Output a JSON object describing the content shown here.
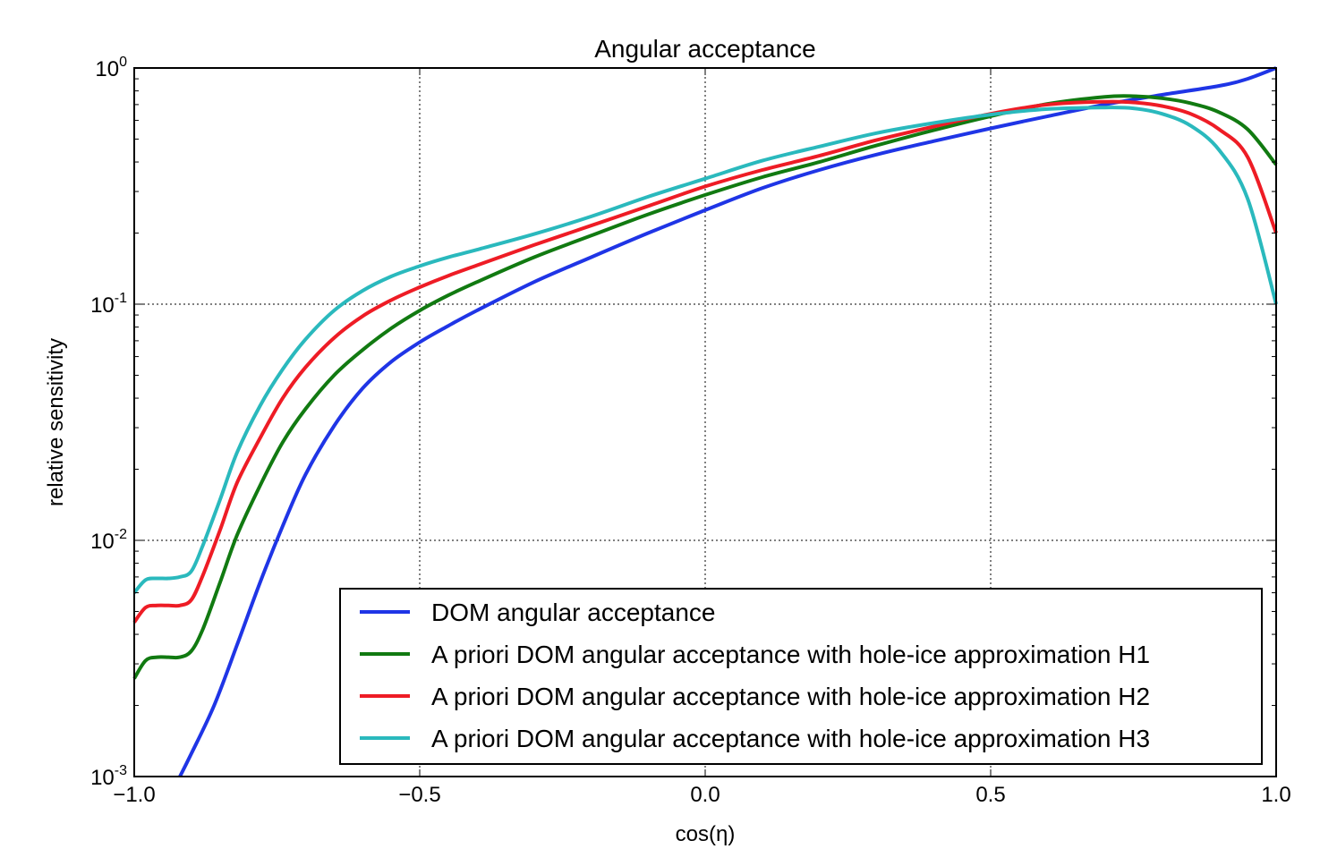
{
  "chart_data": {
    "type": "line",
    "title": "Angular acceptance",
    "xlabel": "cos(η)",
    "ylabel": "relative sensitivity",
    "xlim": [
      -1.0,
      1.0
    ],
    "ylim": [
      0.001,
      1.0
    ],
    "yscale": "log",
    "grid": true,
    "legend_position": "lower-right",
    "x_ticks": [
      {
        "value": -1.0,
        "label": "−1.0"
      },
      {
        "value": -0.5,
        "label": "−0.5"
      },
      {
        "value": 0.0,
        "label": "0.0"
      },
      {
        "value": 0.5,
        "label": "0.5"
      },
      {
        "value": 1.0,
        "label": "1.0"
      }
    ],
    "y_ticks": [
      {
        "value": 0.001,
        "base": "10",
        "exp": "-3"
      },
      {
        "value": 0.01,
        "base": "10",
        "exp": "-2"
      },
      {
        "value": 0.1,
        "base": "10",
        "exp": "-1"
      },
      {
        "value": 1.0,
        "base": "10",
        "exp": "0"
      }
    ],
    "series": [
      {
        "name": "DOM angular acceptance",
        "color": "#1f35e6",
        "x": [
          -0.92,
          -0.9,
          -0.86,
          -0.82,
          -0.78,
          -0.74,
          -0.7,
          -0.65,
          -0.6,
          -0.55,
          -0.5,
          -0.45,
          -0.4,
          -0.3,
          -0.2,
          -0.1,
          0.0,
          0.1,
          0.2,
          0.3,
          0.4,
          0.5,
          0.6,
          0.7,
          0.8,
          0.9,
          0.95,
          1.0
        ],
        "y": [
          0.001,
          0.00125,
          0.002,
          0.0036,
          0.0066,
          0.0115,
          0.019,
          0.0305,
          0.044,
          0.057,
          0.069,
          0.081,
          0.094,
          0.124,
          0.158,
          0.2,
          0.25,
          0.31,
          0.37,
          0.43,
          0.49,
          0.555,
          0.625,
          0.7,
          0.77,
          0.84,
          0.9,
          1.0
        ]
      },
      {
        "name": "A priori DOM angular acceptance with hole-ice approximation H1",
        "color": "#117a11",
        "x": [
          -1.0,
          -0.98,
          -0.96,
          -0.94,
          -0.92,
          -0.9,
          -0.88,
          -0.85,
          -0.82,
          -0.78,
          -0.74,
          -0.7,
          -0.65,
          -0.6,
          -0.55,
          -0.5,
          -0.45,
          -0.4,
          -0.3,
          -0.2,
          -0.1,
          0.0,
          0.1,
          0.2,
          0.3,
          0.4,
          0.5,
          0.6,
          0.7,
          0.75,
          0.8,
          0.85,
          0.9,
          0.95,
          1.0
        ],
        "y": [
          0.0026,
          0.0031,
          0.0032,
          0.0032,
          0.0032,
          0.0034,
          0.0042,
          0.0066,
          0.0105,
          0.017,
          0.026,
          0.036,
          0.05,
          0.064,
          0.079,
          0.094,
          0.109,
          0.124,
          0.158,
          0.195,
          0.24,
          0.29,
          0.345,
          0.4,
          0.47,
          0.545,
          0.625,
          0.705,
          0.755,
          0.76,
          0.745,
          0.71,
          0.65,
          0.55,
          0.39
        ]
      },
      {
        "name": "A priori DOM angular acceptance with hole-ice approximation H2",
        "color": "#ee1c25",
        "x": [
          -1.0,
          -0.98,
          -0.96,
          -0.94,
          -0.92,
          -0.9,
          -0.88,
          -0.85,
          -0.82,
          -0.78,
          -0.74,
          -0.7,
          -0.65,
          -0.6,
          -0.55,
          -0.5,
          -0.45,
          -0.4,
          -0.3,
          -0.2,
          -0.1,
          0.0,
          0.1,
          0.2,
          0.3,
          0.4,
          0.5,
          0.6,
          0.7,
          0.75,
          0.8,
          0.85,
          0.9,
          0.95,
          1.0
        ],
        "y": [
          0.0045,
          0.0052,
          0.0053,
          0.0053,
          0.0053,
          0.0056,
          0.0071,
          0.011,
          0.0175,
          0.027,
          0.04,
          0.054,
          0.072,
          0.089,
          0.104,
          0.118,
          0.132,
          0.146,
          0.178,
          0.215,
          0.26,
          0.315,
          0.37,
          0.425,
          0.495,
          0.565,
          0.64,
          0.7,
          0.72,
          0.715,
          0.69,
          0.64,
          0.55,
          0.42,
          0.2
        ]
      },
      {
        "name": "A priori DOM angular acceptance with hole-ice approximation H3",
        "color": "#2ab9bd",
        "x": [
          -1.0,
          -0.98,
          -0.96,
          -0.94,
          -0.92,
          -0.9,
          -0.88,
          -0.85,
          -0.82,
          -0.78,
          -0.74,
          -0.7,
          -0.65,
          -0.6,
          -0.55,
          -0.5,
          -0.45,
          -0.4,
          -0.3,
          -0.2,
          -0.1,
          0.0,
          0.1,
          0.2,
          0.3,
          0.4,
          0.5,
          0.6,
          0.7,
          0.75,
          0.8,
          0.85,
          0.9,
          0.95,
          1.0
        ],
        "y": [
          0.006,
          0.0068,
          0.0069,
          0.0069,
          0.007,
          0.0074,
          0.0095,
          0.0148,
          0.0235,
          0.037,
          0.053,
          0.071,
          0.094,
          0.114,
          0.131,
          0.145,
          0.158,
          0.17,
          0.198,
          0.235,
          0.285,
          0.34,
          0.405,
          0.465,
          0.53,
          0.585,
          0.635,
          0.67,
          0.68,
          0.675,
          0.64,
          0.57,
          0.45,
          0.28,
          0.1
        ]
      }
    ]
  }
}
